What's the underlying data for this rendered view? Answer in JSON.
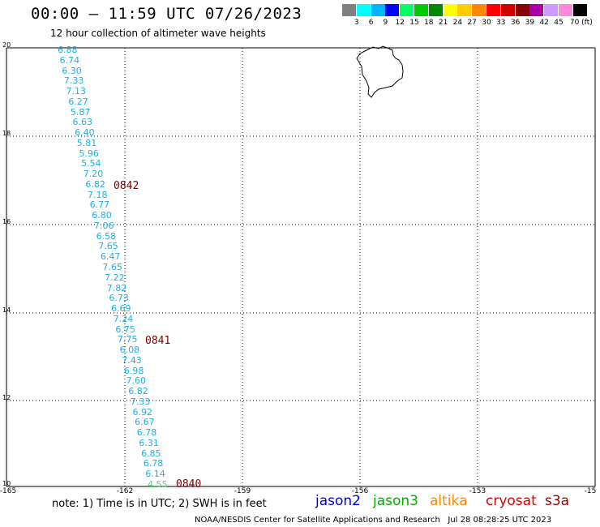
{
  "title": "00:00 – 11:59 UTC 07/26/2023",
  "subtitle": "12 hour collection of altimeter wave heights",
  "colorbar": {
    "labels": [
      "3",
      "6",
      "9",
      "12",
      "15",
      "18",
      "21",
      "24",
      "27",
      "30",
      "33",
      "36",
      "39",
      "42",
      "45",
      "70 (ft)"
    ],
    "colors": [
      "#808080",
      "#00ffff",
      "#00b4ff",
      "#0000ff",
      "#00ff66",
      "#00cc00",
      "#008800",
      "#ffff00",
      "#ffcc00",
      "#ff8800",
      "#ff0000",
      "#cc0000",
      "#880000",
      "#aa00aa",
      "#cc99ff",
      "#ff88dd",
      "#000000"
    ]
  },
  "map": {
    "x_ticks": [
      "-165",
      "-162",
      "-159",
      "-156",
      "-153",
      "-15"
    ],
    "y_ticks": [
      "20",
      "18",
      "16",
      "14",
      "12",
      "10"
    ],
    "grid": true,
    "wave_heights": [
      "6.88",
      "6.74",
      "6.30",
      "7.33",
      "7.13",
      "6.27",
      "5.87",
      "6.63",
      "6.40",
      "5.81",
      "5.96",
      "5.54",
      "7.20",
      "6.82",
      "7.18",
      "6.77",
      "6.80",
      "7.06",
      "6.58",
      "7.65",
      "6.47",
      "7.65",
      "7.22",
      "7.82",
      "6.73",
      "6.69",
      "7.24",
      "6.75",
      "7.75",
      "6.08",
      "7.43",
      "6.98",
      "7.60",
      "6.82",
      "7.33",
      "6.92",
      "6.67",
      "6.78",
      "6.31",
      "6.85",
      "6.78",
      "6.14",
      "4.55"
    ],
    "last_value_color": "#66cc88",
    "pass_labels": [
      "0842",
      "0841",
      "0840"
    ]
  },
  "footer": {
    "note": "note: 1) Time is in UTC; 2) SWH is in feet",
    "satellites": [
      {
        "name": "jason2",
        "color": "#0000dd"
      },
      {
        "name": "jason3",
        "color": "#00aa00"
      },
      {
        "name": "altika",
        "color": "#ff8800"
      },
      {
        "name": "cryosat",
        "color": "#dd0000"
      },
      {
        "name": "s3a",
        "color": "#990000"
      }
    ],
    "credit": "NOAA/NESDIS Center for Satellite Applications and Research   Jul 28 08:28:25 UTC 2023"
  }
}
